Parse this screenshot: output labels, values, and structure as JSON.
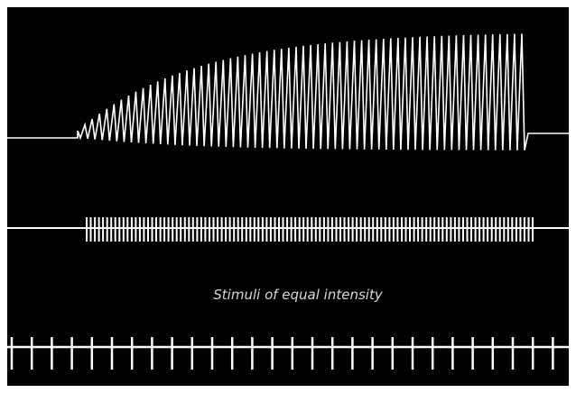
{
  "caption": "Stimuli of equal intensity"
}
